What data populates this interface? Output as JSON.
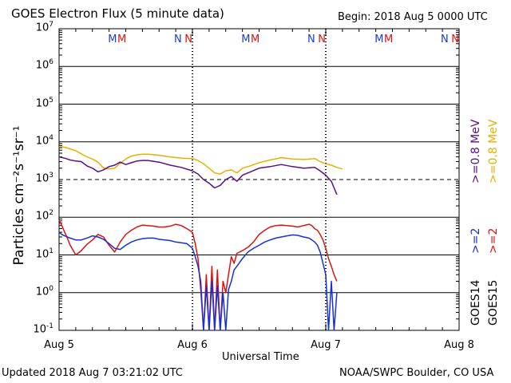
{
  "header": {
    "title": "GOES Electron Flux (5 minute data)",
    "begin": "Begin: 2018 Aug 5 0000 UTC"
  },
  "footer": {
    "updated": "Updated 2018 Aug  7 03:21:02 UTC",
    "credit": "NOAA/SWPC Boulder, CO USA"
  },
  "chart_data": {
    "type": "line",
    "title": "GOES Electron Flux (5 minute data)",
    "xlabel": "Universal Time",
    "ylabel": "Particles cm⁻²s⁻¹sr⁻¹",
    "yscale": "log",
    "ylim": [
      0.1,
      10000000
    ],
    "xlim_hours": [
      0,
      72
    ],
    "x_ticks": [
      {
        "label": "Aug 5",
        "hour": 0
      },
      {
        "label": "Aug 6",
        "hour": 24
      },
      {
        "label": "Aug 7",
        "hour": 48
      },
      {
        "label": "Aug 8",
        "hour": 72
      }
    ],
    "y_ticks": [
      {
        "base": "10",
        "exp": "7",
        "value": 10000000
      },
      {
        "base": "10",
        "exp": "6",
        "value": 1000000
      },
      {
        "base": "10",
        "exp": "5",
        "value": 100000
      },
      {
        "base": "10",
        "exp": "4",
        "value": 10000
      },
      {
        "base": "10",
        "exp": "3",
        "value": 1000
      },
      {
        "base": "10",
        "exp": "2",
        "value": 100
      },
      {
        "base": "10",
        "exp": "1",
        "value": 10
      },
      {
        "base": "10",
        "exp": "0",
        "value": 1
      },
      {
        "base": "10",
        "exp": "-1",
        "value": 0.1
      }
    ],
    "threshold": 1000,
    "markers": [
      {
        "letter": "M",
        "hour": 9.6,
        "color": "#1a3bd6"
      },
      {
        "letter": "M",
        "hour": 11.3,
        "color": "#e01010"
      },
      {
        "letter": "N",
        "hour": 21.4,
        "color": "#1a3bd6"
      },
      {
        "letter": "N",
        "hour": 23.3,
        "color": "#e01010"
      },
      {
        "letter": "M",
        "hour": 33.6,
        "color": "#1a3bd6"
      },
      {
        "letter": "M",
        "hour": 35.3,
        "color": "#e01010"
      },
      {
        "letter": "N",
        "hour": 45.4,
        "color": "#1a3bd6"
      },
      {
        "letter": "N",
        "hour": 47.3,
        "color": "#e01010"
      },
      {
        "letter": "M",
        "hour": 57.6,
        "color": "#1a3bd6"
      },
      {
        "letter": "M",
        "hour": 59.3,
        "color": "#e01010"
      },
      {
        "letter": "N",
        "hour": 69.4,
        "color": "#1a3bd6"
      },
      {
        "letter": "N",
        "hour": 71.3,
        "color": "#e01010"
      }
    ],
    "series": [
      {
        "name": "GOES15 >=0.8 MeV",
        "color": "#e8b000",
        "x": [
          0,
          1,
          2,
          3,
          4,
          5,
          6,
          7,
          8,
          9,
          10,
          11,
          12,
          13,
          14,
          15,
          16,
          18,
          20,
          22,
          24,
          25,
          26,
          27,
          28,
          29,
          30,
          31,
          32,
          33,
          34,
          36,
          38,
          40,
          42,
          44,
          46,
          47,
          48,
          49,
          50,
          51
        ],
        "y": [
          7500,
          7200,
          6500,
          5800,
          4800,
          4000,
          3500,
          2900,
          2000,
          1900,
          2000,
          2700,
          3500,
          4200,
          4500,
          4700,
          4700,
          4400,
          4000,
          3700,
          3600,
          3200,
          2600,
          2000,
          1500,
          1400,
          1700,
          1800,
          1500,
          2000,
          2200,
          2800,
          3300,
          3800,
          3500,
          3400,
          3600,
          3000,
          2600,
          2400,
          2100,
          1900
        ]
      },
      {
        "name": "GOES14 >=0.8 MeV",
        "color": "#5a0f8a",
        "x": [
          0,
          1,
          2,
          3,
          4,
          5,
          6,
          7,
          8,
          9,
          10,
          11,
          12,
          13,
          14,
          15,
          16,
          18,
          20,
          22,
          24,
          25,
          26,
          27,
          28,
          29,
          30,
          31,
          32,
          33,
          34,
          36,
          38,
          40,
          42,
          44,
          46,
          47,
          48,
          49,
          49.5,
          50
        ],
        "y": [
          4000,
          3700,
          3300,
          3100,
          3000,
          2300,
          2000,
          1600,
          1800,
          2200,
          2400,
          2900,
          2500,
          2800,
          3100,
          3200,
          3200,
          2900,
          2400,
          2100,
          1700,
          1400,
          1000,
          800,
          600,
          700,
          1000,
          1200,
          900,
          1300,
          1500,
          2000,
          2200,
          2500,
          2200,
          2000,
          2100,
          1700,
          1300,
          900,
          600,
          400
        ]
      },
      {
        "name": "GOES15 >=2 MeV",
        "color": "#e01010",
        "x": [
          0,
          0.5,
          1,
          1.5,
          2,
          3,
          4,
          5,
          6,
          7,
          8,
          9,
          10,
          11,
          12,
          13,
          14,
          15,
          16,
          17,
          18,
          19,
          20,
          21,
          22,
          23,
          24,
          24.5,
          25,
          25.5,
          26,
          26.5,
          27,
          27.5,
          28,
          28.5,
          29,
          29.5,
          30,
          30.5,
          31,
          31.5,
          32,
          33,
          34,
          35,
          36,
          37,
          38,
          39,
          40,
          41,
          42,
          43,
          44,
          45,
          45.5,
          46,
          46.5,
          47,
          47.5,
          48,
          48.5,
          49,
          49.5,
          50
        ],
        "y": [
          85,
          60,
          40,
          28,
          18,
          10,
          13,
          19,
          25,
          35,
          30,
          18,
          12,
          22,
          35,
          45,
          55,
          62,
          60,
          58,
          55,
          55,
          58,
          65,
          60,
          50,
          40,
          20,
          8,
          1.2,
          0.1,
          3,
          0.1,
          5,
          0.1,
          4,
          0.1,
          2,
          1,
          3,
          9,
          6,
          11,
          13,
          16,
          22,
          35,
          45,
          55,
          60,
          62,
          60,
          58,
          55,
          60,
          65,
          60,
          50,
          45,
          35,
          25,
          15,
          8,
          5,
          3,
          2
        ]
      },
      {
        "name": "GOES14 >=2 MeV",
        "color": "#1530d8",
        "x": [
          0,
          0.5,
          1,
          2,
          3,
          4,
          5,
          6,
          7,
          8,
          9,
          10,
          11,
          12,
          13,
          14,
          15,
          16,
          17,
          18,
          19,
          20,
          21,
          22,
          23,
          24,
          24.5,
          25,
          25.5,
          26,
          26.5,
          27,
          27.5,
          28,
          28.5,
          29,
          29.5,
          30,
          30.5,
          31,
          31.5,
          32,
          33,
          34,
          35,
          36,
          37,
          38,
          39,
          40,
          41,
          42,
          43,
          44,
          45,
          45.5,
          46,
          46.5,
          47,
          47.5,
          48,
          48.5,
          49,
          49.5,
          50
        ],
        "y": [
          40,
          35,
          32,
          28,
          25,
          25,
          28,
          32,
          30,
          26,
          20,
          15,
          14,
          18,
          22,
          25,
          27,
          28,
          28,
          26,
          25,
          24,
          22,
          21,
          20,
          15,
          9,
          5,
          2,
          0.1,
          1.5,
          0.1,
          2,
          0.1,
          1.5,
          0.1,
          1,
          0.1,
          1.2,
          2,
          4,
          5,
          8,
          12,
          15,
          18,
          22,
          25,
          28,
          30,
          32,
          34,
          33,
          30,
          28,
          25,
          22,
          18,
          12,
          6,
          3,
          0.1,
          2,
          0.1,
          1
        ]
      }
    ]
  },
  "legend": {
    "left_col_sat": "GOES14",
    "right_col_sat": "GOES15",
    "low_energy": ">=0.8  MeV",
    "high_energy": ">=2",
    "low_energy_color_14": "#5a0f8a",
    "low_energy_color_15": "#e8b000",
    "high_energy_color_14": "#1530d8",
    "high_energy_color_15": "#e01010"
  }
}
